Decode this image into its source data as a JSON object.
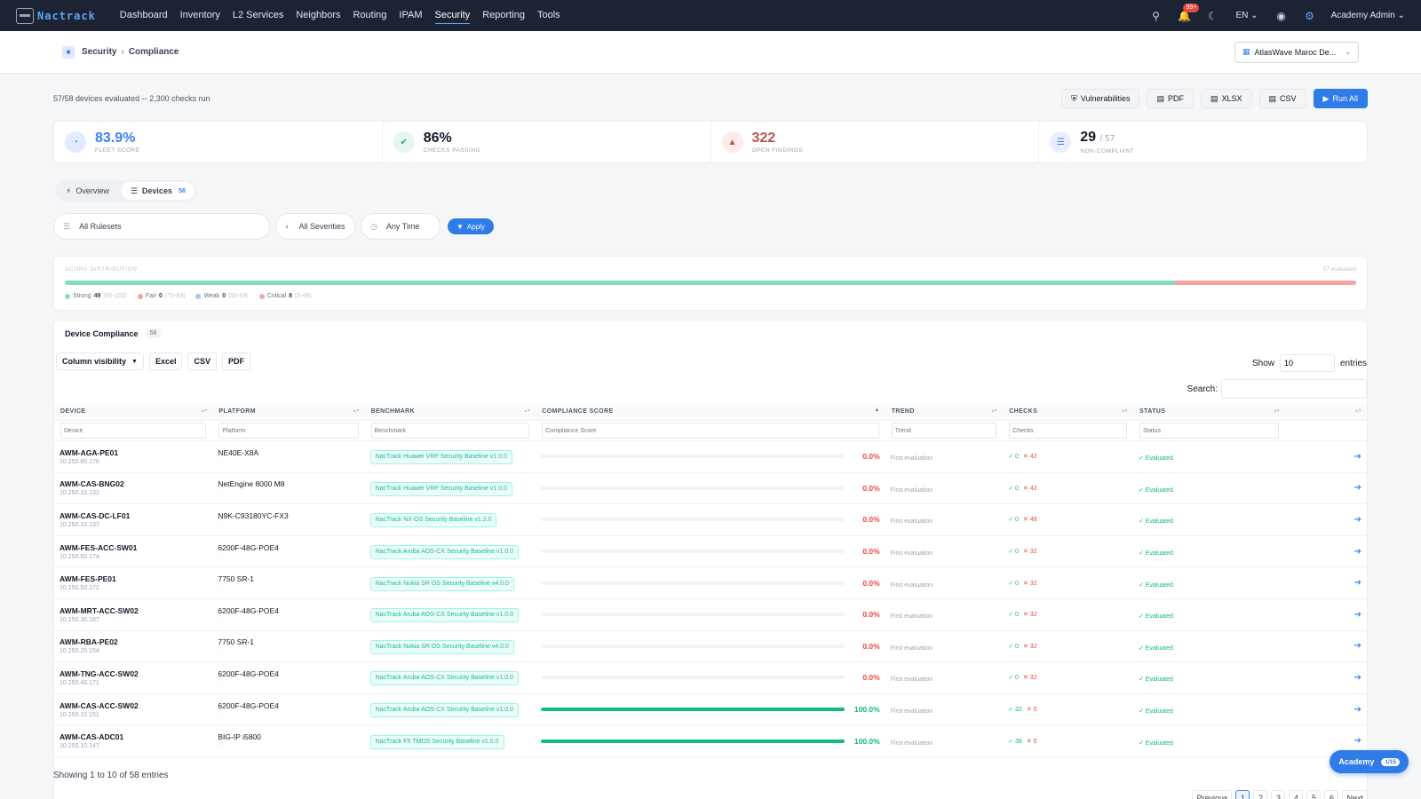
{
  "navbar": {
    "brand": "Nactrack",
    "links": [
      "Dashboard",
      "Inventory",
      "L2 Services",
      "Neighbors",
      "Routing",
      "IPAM",
      "Security",
      "Reporting",
      "Tools"
    ],
    "active_link": "Security",
    "notification_badge": "99+",
    "language": "EN",
    "user": "Academy Admin"
  },
  "breadcrumb": {
    "section": "Security",
    "page": "Compliance"
  },
  "tenant_select": {
    "value": "AtlasWave Maroc De..."
  },
  "summary": {
    "text": "57/58 devices evaluated -- 2,300 checks run",
    "buttons": {
      "vulnerabilities": "Vulnerabilities",
      "pdf": "PDF",
      "xlsx": "XLSX",
      "csv": "CSV",
      "run_all": "Run All"
    }
  },
  "stats": [
    {
      "value": "83.9%",
      "sub": "",
      "label": "FLEET SCORE",
      "color": "#3b82f6",
      "icon_bg": "#e0ecff",
      "icon": "gauge-icon"
    },
    {
      "value": "86%",
      "sub": "",
      "label": "CHECKS PASSING",
      "color": "#111827",
      "icon_bg": "#e6f7ef",
      "icon": "check-circle-icon"
    },
    {
      "value": "322",
      "sub": "",
      "label": "OPEN FINDINGS",
      "color": "#c0504d",
      "icon_bg": "#fdecec",
      "icon": "warning-icon"
    },
    {
      "value": "29",
      "sub": "/ 57",
      "label": "NON-COMPLIANT",
      "color": "#111827",
      "icon_bg": "#e7efff",
      "icon": "server-icon"
    }
  ],
  "tabs": {
    "overview": "Overview",
    "devices": "Devices",
    "devices_count": "58"
  },
  "filters": {
    "rulesets": "All Rulesets",
    "severities": "All Severities",
    "time": "Any Time",
    "apply": "Apply"
  },
  "distribution": {
    "title": "SCORE DISTRIBUTION",
    "evaluated": "57 evaluated",
    "total": 57,
    "buckets": [
      {
        "name": "Strong",
        "count": 49,
        "range": "(90-100)",
        "color": "#86dcc0"
      },
      {
        "name": "Fair",
        "count": 0,
        "range": "(70-89)",
        "color": "#f5a3a3"
      },
      {
        "name": "Weak",
        "count": 0,
        "range": "(50-69)",
        "color": "#a8c7f0"
      },
      {
        "name": "Critical",
        "count": 8,
        "range": "(0-49)",
        "color": "#f5a3a3"
      }
    ]
  },
  "table": {
    "title": "Device Compliance",
    "count": "58",
    "tools": {
      "column_visibility": "Column visibility",
      "excel": "Excel",
      "csv": "CSV",
      "pdf": "PDF"
    },
    "show_label": "Show",
    "show_value": "10",
    "entries_label": "entries",
    "search_label": "Search:",
    "columns": [
      "DEVICE",
      "PLATFORM",
      "BENCHMARK",
      "COMPLIANCE SCORE",
      "TREND",
      "CHECKS",
      "STATUS"
    ],
    "filter_placeholders": [
      "Device",
      "Platform",
      "Benchmark",
      "Compliance Score",
      "Trend",
      "Checks",
      "Status"
    ],
    "rows": [
      {
        "device": "AWM-AGA-PE01",
        "ip": "10.250.60.176",
        "platform": "NE40E-X8A",
        "platform_sub": "-",
        "benchmark": "NacTrack Huawei VRP Security Baseline v1.0.0",
        "score": 0.0,
        "score_label": "0.0%",
        "trend": "First evaluation",
        "pass": "✓ 0",
        "fail": "✕ 42",
        "status": "✓ Evaluated"
      },
      {
        "device": "AWM-CAS-BNG02",
        "ip": "10.250.10.132",
        "platform": "NetEngine 8000 M8",
        "platform_sub": "-",
        "benchmark": "NacTrack Huawei VRP Security Baseline v1.0.0",
        "score": 0.0,
        "score_label": "0.0%",
        "trend": "First evaluation",
        "pass": "✓ 0",
        "fail": "✕ 42",
        "status": "✓ Evaluated"
      },
      {
        "device": "AWM-CAS-DC-LF01",
        "ip": "10.250.10.137",
        "platform": "N9K-C93180YC-FX3",
        "platform_sub": "-",
        "benchmark": "NacTrack NX-OS Security Baseline v1.2.0",
        "score": 0.0,
        "score_label": "0.0%",
        "trend": "First evaluation",
        "pass": "✓ 0",
        "fail": "✕ 49",
        "status": "✓ Evaluated"
      },
      {
        "device": "AWM-FES-ACC-SW01",
        "ip": "10.250.50.174",
        "platform": "6200F-48G-POE4",
        "platform_sub": "-",
        "benchmark": "NacTrack Aruba AOS-CX Security Baseline v1.0.0",
        "score": 0.0,
        "score_label": "0.0%",
        "trend": "First evaluation",
        "pass": "✓ 0",
        "fail": "✕ 32",
        "status": "✓ Evaluated"
      },
      {
        "device": "AWM-FES-PE01",
        "ip": "10.250.50.172",
        "platform": "7750 SR-1",
        "platform_sub": "-",
        "benchmark": "NacTrack Nokia SR OS Security Baseline v4.0.0",
        "score": 0.0,
        "score_label": "0.0%",
        "trend": "First evaluation",
        "pass": "✓ 0",
        "fail": "✕ 32",
        "status": "✓ Evaluated"
      },
      {
        "device": "AWM-MRT-ACC-SW02",
        "ip": "10.250.30.167",
        "platform": "6200F-48G-POE4",
        "platform_sub": "-",
        "benchmark": "NacTrack Aruba AOS-CX Security Baseline v1.0.0",
        "score": 0.0,
        "score_label": "0.0%",
        "trend": "First evaluation",
        "pass": "✓ 0",
        "fail": "✕ 32",
        "status": "✓ Evaluated"
      },
      {
        "device": "AWM-RBA-PE02",
        "ip": "10.250.20.154",
        "platform": "7750 SR-1",
        "platform_sub": "-",
        "benchmark": "NacTrack Nokia SR OS Security Baseline v4.0.0",
        "score": 0.0,
        "score_label": "0.0%",
        "trend": "First evaluation",
        "pass": "✓ 0",
        "fail": "✕ 32",
        "status": "✓ Evaluated"
      },
      {
        "device": "AWM-TNG-ACC-SW02",
        "ip": "10.250.40.171",
        "platform": "6200F-48G-POE4",
        "platform_sub": "-",
        "benchmark": "NacTrack Aruba AOS-CX Security Baseline v1.0.0",
        "score": 0.0,
        "score_label": "0.0%",
        "trend": "First evaluation",
        "pass": "✓ 0",
        "fail": "✕ 32",
        "status": "✓ Evaluated"
      },
      {
        "device": "AWM-CAS-ACC-SW02",
        "ip": "10.250.10.151",
        "platform": "6200F-48G-POE4",
        "platform_sub": "-",
        "benchmark": "NacTrack Aruba AOS-CX Security Baseline v1.0.0",
        "score": 100.0,
        "score_label": "100.0%",
        "trend": "First evaluation",
        "pass": "✓ 32",
        "fail": "✕ 0",
        "status": "✓ Evaluated"
      },
      {
        "device": "AWM-CAS-ADC01",
        "ip": "10.250.10.147",
        "platform": "BIG-IP i5800",
        "platform_sub": "-",
        "benchmark": "NacTrack F5 TMOS Security Baseline v1.0.0",
        "score": 100.0,
        "score_label": "100.0%",
        "trend": "First evaluation",
        "pass": "✓ 36",
        "fail": "✕ 0",
        "status": "✓ Evaluated"
      }
    ],
    "showing": "Showing 1 to 10 of 58 entries",
    "pagination": {
      "previous": "Previous",
      "pages": [
        "1",
        "2",
        "3",
        "4",
        "5",
        "6"
      ],
      "active": "1",
      "next": "Next"
    }
  },
  "academy": {
    "label": "Academy",
    "progress": "1/15"
  }
}
